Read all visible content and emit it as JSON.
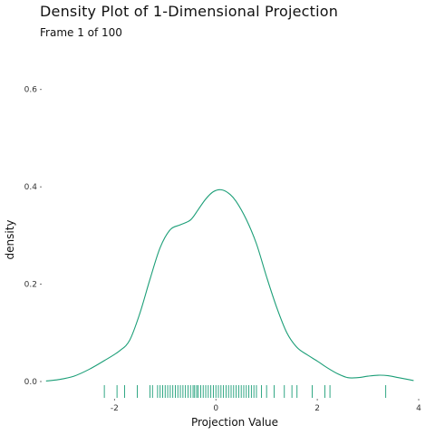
{
  "title": "Density Plot of 1-Dimensional Projection",
  "subtitle": "Frame 1 of 100",
  "colors": {
    "line": "#1b9e77",
    "text": "#111111"
  },
  "chart_data": {
    "type": "area",
    "xlabel": "Projection Value",
    "ylabel": "density",
    "xlim": [
      -3.4,
      4.0
    ],
    "ylim": [
      0,
      0.62
    ],
    "x_ticks": [
      -2,
      0,
      2,
      4
    ],
    "x_tick_labels": [
      "-2",
      "0",
      "2",
      "4"
    ],
    "y_ticks": [
      0.0,
      0.2,
      0.4,
      0.6
    ],
    "y_tick_labels": [
      "0.0",
      "0.2",
      "0.4",
      "0.6"
    ],
    "grid": false,
    "legend": "none",
    "density_curve": {
      "x": [
        -3.35,
        -3.1,
        -2.8,
        -2.5,
        -2.2,
        -1.9,
        -1.7,
        -1.5,
        -1.3,
        -1.1,
        -0.9,
        -0.7,
        -0.5,
        -0.35,
        -0.2,
        -0.05,
        0.1,
        0.25,
        0.4,
        0.6,
        0.8,
        1.0,
        1.2,
        1.4,
        1.6,
        1.8,
        2.0,
        2.2,
        2.4,
        2.6,
        2.8,
        3.0,
        3.2,
        3.4,
        3.6,
        3.8,
        3.9
      ],
      "y": [
        0.001,
        0.004,
        0.011,
        0.025,
        0.043,
        0.063,
        0.085,
        0.14,
        0.21,
        0.275,
        0.312,
        0.322,
        0.332,
        0.353,
        0.375,
        0.39,
        0.394,
        0.387,
        0.37,
        0.333,
        0.283,
        0.215,
        0.152,
        0.1,
        0.07,
        0.055,
        0.042,
        0.028,
        0.016,
        0.008,
        0.008,
        0.011,
        0.013,
        0.012,
        0.008,
        0.004,
        0.002
      ]
    },
    "rug": [
      -2.2,
      -1.95,
      -1.8,
      -1.55,
      -1.3,
      -1.25,
      -1.15,
      -1.1,
      -1.05,
      -1.0,
      -0.95,
      -0.9,
      -0.85,
      -0.8,
      -0.75,
      -0.7,
      -0.65,
      -0.6,
      -0.55,
      -0.5,
      -0.45,
      -0.42,
      -0.38,
      -0.35,
      -0.3,
      -0.25,
      -0.2,
      -0.15,
      -0.1,
      -0.05,
      0.0,
      0.05,
      0.1,
      0.15,
      0.2,
      0.25,
      0.3,
      0.35,
      0.4,
      0.45,
      0.5,
      0.55,
      0.6,
      0.65,
      0.7,
      0.75,
      0.8,
      0.9,
      1.0,
      1.15,
      1.35,
      1.5,
      1.6,
      1.9,
      2.15,
      2.25,
      3.35
    ]
  }
}
